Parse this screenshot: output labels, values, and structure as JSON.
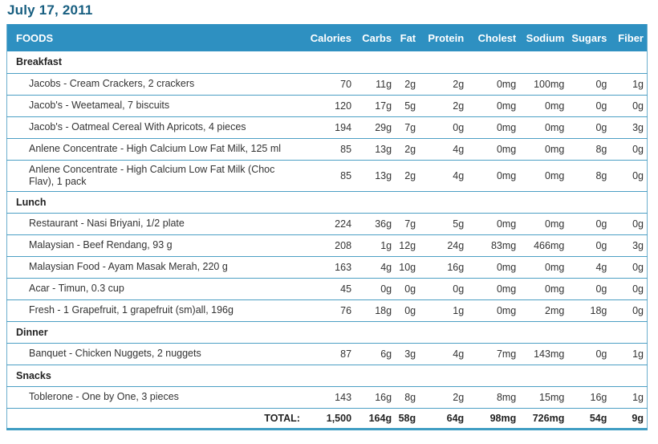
{
  "page_title": "July 17, 2011",
  "table": {
    "foods_header": "FOODS",
    "columns": [
      "Calories",
      "Carbs",
      "Fat",
      "Protein",
      "Cholest",
      "Sodium",
      "Sugars",
      "Fiber"
    ],
    "sections": [
      {
        "name": "Breakfast",
        "rows": [
          {
            "food": "Jacobs - Cream Crackers, 2 crackers",
            "values": [
              "70",
              "11g",
              "2g",
              "2g",
              "0mg",
              "100mg",
              "0g",
              "1g"
            ]
          },
          {
            "food": "Jacob's - Weetameal, 7 biscuits",
            "values": [
              "120",
              "17g",
              "5g",
              "2g",
              "0mg",
              "0mg",
              "0g",
              "0g"
            ]
          },
          {
            "food": "Jacob's - Oatmeal Cereal With Apricots, 4 pieces",
            "values": [
              "194",
              "29g",
              "7g",
              "0g",
              "0mg",
              "0mg",
              "0g",
              "3g"
            ]
          },
          {
            "food": "Anlene Concentrate - High Calcium Low Fat Milk, 125 ml",
            "values": [
              "85",
              "13g",
              "2g",
              "4g",
              "0mg",
              "0mg",
              "8g",
              "0g"
            ]
          },
          {
            "food": "Anlene Concentrate - High Calcium Low Fat Milk (Choc Flav), 1 pack",
            "values": [
              "85",
              "13g",
              "2g",
              "4g",
              "0mg",
              "0mg",
              "8g",
              "0g"
            ]
          }
        ]
      },
      {
        "name": "Lunch",
        "rows": [
          {
            "food": "Restaurant - Nasi Briyani, 1/2 plate",
            "values": [
              "224",
              "36g",
              "7g",
              "5g",
              "0mg",
              "0mg",
              "0g",
              "0g"
            ]
          },
          {
            "food": "Malaysian - Beef Rendang, 93 g",
            "values": [
              "208",
              "1g",
              "12g",
              "24g",
              "83mg",
              "466mg",
              "0g",
              "3g"
            ]
          },
          {
            "food": "Malaysian Food - Ayam Masak Merah, 220 g",
            "values": [
              "163",
              "4g",
              "10g",
              "16g",
              "0mg",
              "0mg",
              "4g",
              "0g"
            ]
          },
          {
            "food": "Acar - Timun, 0.3 cup",
            "values": [
              "45",
              "0g",
              "0g",
              "0g",
              "0mg",
              "0mg",
              "0g",
              "0g"
            ]
          },
          {
            "food": "Fresh - 1 Grapefruit, 1 grapefruit (sm)all, 196g",
            "values": [
              "76",
              "18g",
              "0g",
              "1g",
              "0mg",
              "2mg",
              "18g",
              "0g"
            ]
          }
        ]
      },
      {
        "name": "Dinner",
        "rows": [
          {
            "food": "Banquet - Chicken Nuggets, 2 nuggets",
            "values": [
              "87",
              "6g",
              "3g",
              "4g",
              "7mg",
              "143mg",
              "0g",
              "1g"
            ]
          }
        ]
      },
      {
        "name": "Snacks",
        "rows": [
          {
            "food": "Toblerone - One by One, 3 pieces",
            "values": [
              "143",
              "16g",
              "8g",
              "2g",
              "8mg",
              "15mg",
              "16g",
              "1g"
            ]
          }
        ]
      }
    ],
    "total": {
      "label": "TOTAL:",
      "values": [
        "1,500",
        "164g",
        "58g",
        "64g",
        "98mg",
        "726mg",
        "54g",
        "9g"
      ]
    }
  },
  "colors": {
    "header_bg": "#2e90c1",
    "title_text": "#175e80",
    "row_border": "#4c9fc4",
    "bottom_border": "#3f9dc3",
    "body_text": "#333333"
  }
}
